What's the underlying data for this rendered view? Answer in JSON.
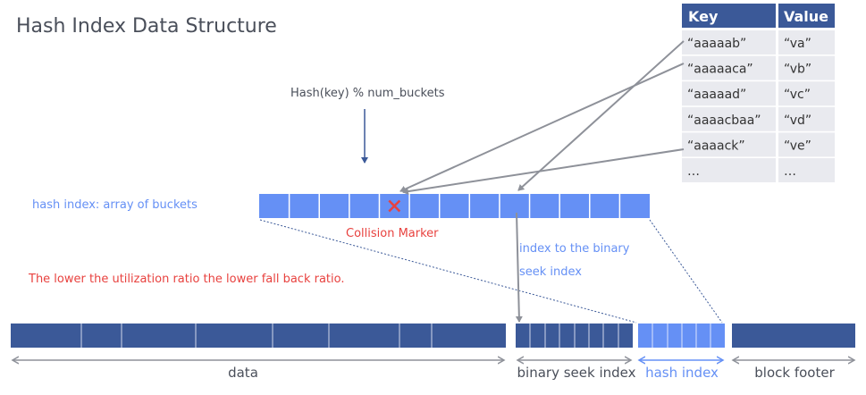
{
  "title": "Hash Index Data Structure",
  "hash_formula": "Hash(key) % num_buckets",
  "hash_index_label": "hash index: array of buckets",
  "collision_label": "Collision Marker",
  "binary_index_note": [
    "index to the binary",
    "seek index"
  ],
  "utilization_note": "The lower the utilization ratio the lower fall back ratio.",
  "table": {
    "headers": [
      "Key",
      "Value"
    ],
    "rows": [
      [
        "“aaaaab”",
        "“va”"
      ],
      [
        "“aaaaaca”",
        "“vb”"
      ],
      [
        "“aaaaad”",
        "“vc”"
      ],
      [
        "“aaaacbaa”",
        "“vd”"
      ],
      [
        "“aaaack”",
        "“ve”"
      ],
      [
        "…",
        "…"
      ]
    ]
  },
  "buckets": {
    "count": 13,
    "collision_bucket": 4
  },
  "block_sections": {
    "data": "data",
    "binary_seek_index": "binary seek index",
    "hash_index": "hash index",
    "block_footer": "block footer"
  },
  "colors": {
    "dark_blue": "#3b5998",
    "light_blue": "#6590f5",
    "red": "#e8423f",
    "gray_arrow": "#8e9199",
    "table_row": "#e9eaef",
    "text": "#4a4f5a"
  }
}
